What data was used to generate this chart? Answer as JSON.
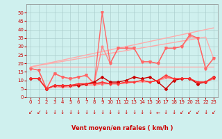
{
  "x": [
    0,
    1,
    2,
    3,
    4,
    5,
    6,
    7,
    8,
    9,
    10,
    11,
    12,
    13,
    14,
    15,
    16,
    17,
    18,
    19,
    20,
    21,
    22,
    23
  ],
  "series": [
    {
      "y": [
        18,
        18,
        18,
        18,
        18,
        18,
        18,
        18,
        18,
        18,
        18,
        18,
        18,
        18,
        18,
        18,
        18,
        18,
        18,
        18,
        18,
        18,
        18,
        18
      ],
      "color": "#ffaaaa",
      "marker": null,
      "lw": 1.0,
      "zorder": 1
    },
    {
      "y": [
        18,
        19,
        20,
        21,
        22,
        23,
        24,
        25,
        26,
        27,
        28,
        29,
        30,
        31,
        32,
        33,
        34,
        35,
        36,
        37,
        38,
        39,
        40,
        41
      ],
      "color": "#ffaaaa",
      "marker": null,
      "lw": 1.0,
      "zorder": 1
    },
    {
      "y": [
        18,
        18.8,
        19.6,
        20.4,
        21.2,
        22.0,
        22.8,
        23.6,
        24.4,
        25.2,
        26.0,
        26.8,
        27.6,
        28.4,
        29.2,
        30.0,
        30.8,
        31.6,
        32.4,
        33.2,
        34.0,
        34.8,
        35.6,
        23
      ],
      "color": "#ffaaaa",
      "marker": null,
      "lw": 1.0,
      "zorder": 1
    },
    {
      "y": [
        11,
        11,
        5,
        7,
        7,
        7,
        7,
        8,
        9,
        12,
        9,
        9,
        10,
        12,
        11,
        12,
        9,
        5,
        10,
        11,
        11,
        8,
        9,
        12
      ],
      "color": "#cc0000",
      "marker": "D",
      "markersize": 2.0,
      "lw": 1.0,
      "zorder": 4
    },
    {
      "y": [
        11,
        11,
        5,
        7,
        7,
        7,
        8,
        8,
        8,
        9,
        8,
        8,
        9,
        9,
        10,
        9,
        10,
        13,
        11,
        11,
        11,
        9,
        9,
        12
      ],
      "color": "#ff3333",
      "marker": "+",
      "markersize": 3.5,
      "lw": 1.0,
      "zorder": 4
    },
    {
      "y": [
        11,
        11,
        5,
        7,
        6,
        7,
        8,
        8,
        8,
        8,
        8,
        8,
        9,
        9,
        10,
        9,
        10,
        12,
        11,
        11,
        11,
        9,
        9,
        11
      ],
      "color": "#ff6666",
      "marker": "s",
      "markersize": 2.0,
      "lw": 1.0,
      "zorder": 3
    },
    {
      "y": [
        11,
        11,
        5,
        6,
        6,
        6,
        7,
        7,
        7,
        8,
        8,
        8,
        8,
        9,
        9,
        9,
        10,
        11,
        11,
        11,
        11,
        9,
        9,
        11
      ],
      "color": "#ff9999",
      "marker": null,
      "lw": 0.8,
      "zorder": 2
    },
    {
      "y": [
        17,
        16,
        5,
        14,
        12,
        11,
        12,
        13,
        8,
        30,
        20,
        29,
        29,
        29,
        21,
        21,
        20,
        29,
        29,
        30,
        36,
        35,
        17,
        23
      ],
      "color": "#ff8888",
      "marker": "o",
      "markersize": 2.0,
      "lw": 1.0,
      "zorder": 3
    },
    {
      "y": [
        17,
        16,
        5,
        14,
        12,
        11,
        12,
        13,
        8,
        50,
        20,
        29,
        29,
        29,
        21,
        21,
        20,
        29,
        29,
        30,
        37,
        35,
        17,
        23
      ],
      "color": "#ff6666",
      "marker": "v",
      "markersize": 2.5,
      "lw": 1.0,
      "zorder": 3
    }
  ],
  "arrow_symbols": [
    "↙",
    "↙",
    "↓",
    "↓",
    "↓",
    "↓",
    "↓",
    "↓",
    "↓",
    "↓",
    "↓",
    "↓",
    "↓",
    "↓",
    "↓",
    "↓",
    "←",
    "↓",
    "↓",
    "↙",
    "↙",
    "↙",
    "↓",
    "↙"
  ],
  "xlabel": "Vent moyen/en rafales ( km/h )",
  "xlim": [
    -0.5,
    23.5
  ],
  "ylim": [
    0,
    55
  ],
  "yticks": [
    0,
    5,
    10,
    15,
    20,
    25,
    30,
    35,
    40,
    45,
    50
  ],
  "xticks": [
    0,
    1,
    2,
    3,
    4,
    5,
    6,
    7,
    8,
    9,
    10,
    11,
    12,
    13,
    14,
    15,
    16,
    17,
    18,
    19,
    20,
    21,
    22,
    23
  ],
  "bg_color": "#cff0ee",
  "grid_color": "#aacccc",
  "xlabel_color": "#cc0000",
  "tick_color": "#cc0000",
  "arrow_color": "#cc0000"
}
